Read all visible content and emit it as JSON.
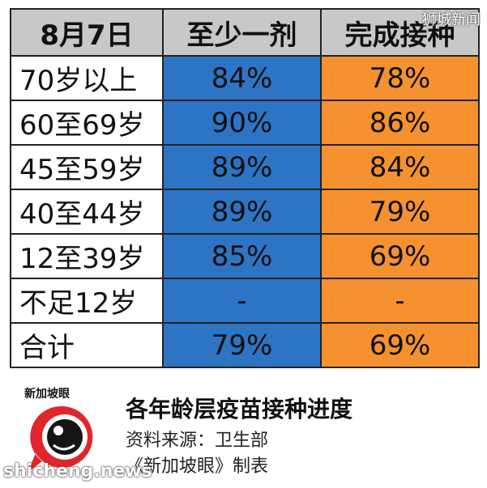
{
  "watermark_top": "狮城新闻",
  "watermark_bottom": "shicheng.news",
  "table": {
    "header": [
      "8月7日",
      "至少一剂",
      "完成接种"
    ],
    "rows": [
      [
        "70岁以上",
        "84%",
        "78%"
      ],
      [
        "60至69岁",
        "90%",
        "86%"
      ],
      [
        "45至59岁",
        "89%",
        "84%"
      ],
      [
        "40至44岁",
        "89%",
        "79%"
      ],
      [
        "12至39岁",
        "85%",
        "69%"
      ],
      [
        "不足12岁",
        "-",
        "-"
      ],
      [
        "合计",
        "79%",
        "69%"
      ]
    ]
  },
  "footer": {
    "logo_text": "新加坡眼",
    "title": "各年龄层疫苗接种进度",
    "source": "资料来源：卫生部",
    "maker": "《新加坡眼》制表"
  },
  "colors": {
    "header_bg": "#c8c8c8",
    "col1_bg": "#2e74c4",
    "col2_bg": "#f5922f",
    "logo_red": "#e0262c"
  }
}
